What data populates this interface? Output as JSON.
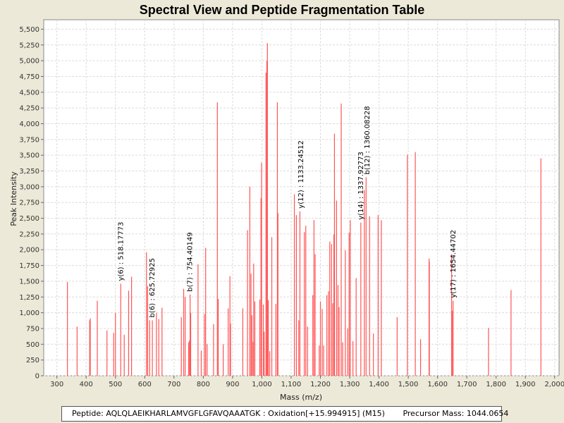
{
  "chart_data": {
    "type": "bar",
    "title": "Spectral View and Peptide Fragmentation Table",
    "xlabel": "Mass (m/z)",
    "ylabel": "Peak Intensity",
    "xlim": [
      255,
      2015
    ],
    "ylim": [
      0,
      5650
    ],
    "x_ticks": [
      300,
      400,
      500,
      600,
      700,
      800,
      900,
      1000,
      1100,
      1200,
      1300,
      1400,
      1500,
      1600,
      1700,
      1800,
      1900,
      2000
    ],
    "x_tick_labels": [
      "300",
      "400",
      "500",
      "600",
      "700",
      "800",
      "900",
      "1,000",
      "1,100",
      "1,200",
      "1,300",
      "1,400",
      "1,500",
      "1,600",
      "1,700",
      "1,800",
      "1,900",
      "2,000"
    ],
    "y_ticks": [
      0,
      250,
      500,
      750,
      1000,
      1250,
      1500,
      1750,
      2000,
      2250,
      2500,
      2750,
      3000,
      3250,
      3500,
      3750,
      4000,
      4250,
      4500,
      4750,
      5000,
      5250,
      5500
    ],
    "y_tick_labels": [
      "0",
      "250",
      "500",
      "750",
      "1,000",
      "1,250",
      "1,500",
      "1,750",
      "2,000",
      "2,250",
      "2,500",
      "2,750",
      "3,000",
      "3,250",
      "3,500",
      "3,750",
      "4,000",
      "4,250",
      "4,500",
      "4,750",
      "5,000",
      "5,250",
      "5,500"
    ],
    "peak_color": "#ff5555",
    "peaks": [
      [
        336,
        1490
      ],
      [
        369,
        780
      ],
      [
        412,
        880
      ],
      [
        414,
        910
      ],
      [
        438,
        1190
      ],
      [
        471,
        720
      ],
      [
        494,
        680
      ],
      [
        500,
        1000
      ],
      [
        518,
        1460
      ],
      [
        530,
        650
      ],
      [
        545,
        1350
      ],
      [
        555,
        1570
      ],
      [
        606,
        1960
      ],
      [
        610,
        1420
      ],
      [
        617,
        880
      ],
      [
        626,
        880
      ],
      [
        640,
        1000
      ],
      [
        648,
        900
      ],
      [
        659,
        1080
      ],
      [
        725,
        930
      ],
      [
        733,
        1380
      ],
      [
        738,
        1250
      ],
      [
        750,
        530
      ],
      [
        753,
        560
      ],
      [
        755,
        1290
      ],
      [
        757,
        1000
      ],
      [
        782,
        1770
      ],
      [
        793,
        400
      ],
      [
        804,
        980
      ],
      [
        808,
        2030
      ],
      [
        813,
        500
      ],
      [
        835,
        820
      ],
      [
        848,
        4340
      ],
      [
        851,
        1220
      ],
      [
        868,
        500
      ],
      [
        885,
        1070
      ],
      [
        891,
        1580
      ],
      [
        893,
        830
      ],
      [
        935,
        1070
      ],
      [
        951,
        2310
      ],
      [
        959,
        3000
      ],
      [
        963,
        1620
      ],
      [
        966,
        960
      ],
      [
        970,
        540
      ],
      [
        972,
        1780
      ],
      [
        976,
        1180
      ],
      [
        993,
        1210
      ],
      [
        997,
        2820
      ],
      [
        999,
        3380
      ],
      [
        1005,
        1130
      ],
      [
        1008,
        700
      ],
      [
        1014,
        4810
      ],
      [
        1017,
        5000
      ],
      [
        1019,
        5280
      ],
      [
        1022,
        1200
      ],
      [
        1027,
        390
      ],
      [
        1034,
        2200
      ],
      [
        1048,
        1140
      ],
      [
        1053,
        4340
      ],
      [
        1055,
        2580
      ],
      [
        1111,
        2880
      ],
      [
        1118,
        2550
      ],
      [
        1126,
        880
      ],
      [
        1130,
        2610
      ],
      [
        1145,
        2280
      ],
      [
        1150,
        2380
      ],
      [
        1156,
        780
      ],
      [
        1174,
        1280
      ],
      [
        1178,
        2470
      ],
      [
        1182,
        1930
      ],
      [
        1196,
        480
      ],
      [
        1200,
        1180
      ],
      [
        1206,
        1060
      ],
      [
        1211,
        480
      ],
      [
        1222,
        1280
      ],
      [
        1228,
        1340
      ],
      [
        1232,
        2130
      ],
      [
        1238,
        2090
      ],
      [
        1242,
        1150
      ],
      [
        1246,
        2240
      ],
      [
        1248,
        3840
      ],
      [
        1255,
        2780
      ],
      [
        1260,
        1440
      ],
      [
        1264,
        1090
      ],
      [
        1271,
        4320
      ],
      [
        1276,
        530
      ],
      [
        1285,
        1990
      ],
      [
        1293,
        750
      ],
      [
        1298,
        2270
      ],
      [
        1302,
        2470
      ],
      [
        1311,
        550
      ],
      [
        1322,
        1550
      ],
      [
        1338,
        2430
      ],
      [
        1350,
        2950
      ],
      [
        1356,
        3150
      ],
      [
        1368,
        2530
      ],
      [
        1381,
        670
      ],
      [
        1397,
        2550
      ],
      [
        1408,
        2470
      ],
      [
        1462,
        930
      ],
      [
        1497,
        3510
      ],
      [
        1524,
        3550
      ],
      [
        1542,
        580
      ],
      [
        1571,
        1860
      ],
      [
        1572,
        1810
      ],
      [
        1648,
        1930
      ],
      [
        1651,
        1030
      ],
      [
        1653,
        1190
      ],
      [
        1774,
        760
      ],
      [
        1851,
        1360
      ],
      [
        1953,
        3450
      ]
    ],
    "annotations": [
      {
        "mz": 518.17773,
        "label": "y(6) : 518.17773"
      },
      {
        "mz": 625.72925,
        "label": "b(6) : 625.72925"
      },
      {
        "mz": 754.40149,
        "label": "b(7) : 754.40149"
      },
      {
        "mz": 1133.24512,
        "label": "y(12) : 1133.24512"
      },
      {
        "mz": 1337.92773,
        "label": "y(14) : 1337.92773"
      },
      {
        "mz": 1360.08228,
        "label": "b(12) : 1360.08228"
      },
      {
        "mz": 1654.44702,
        "label": "y(17) : 1654.44702"
      }
    ]
  },
  "info": {
    "peptide": "Peptide: AQLQLAEIKHARLAMVGFLGFAVQAAATGK : Oxidation[+15.994915] (M15)",
    "precursor": "Precursor Mass: 1044.0654"
  }
}
